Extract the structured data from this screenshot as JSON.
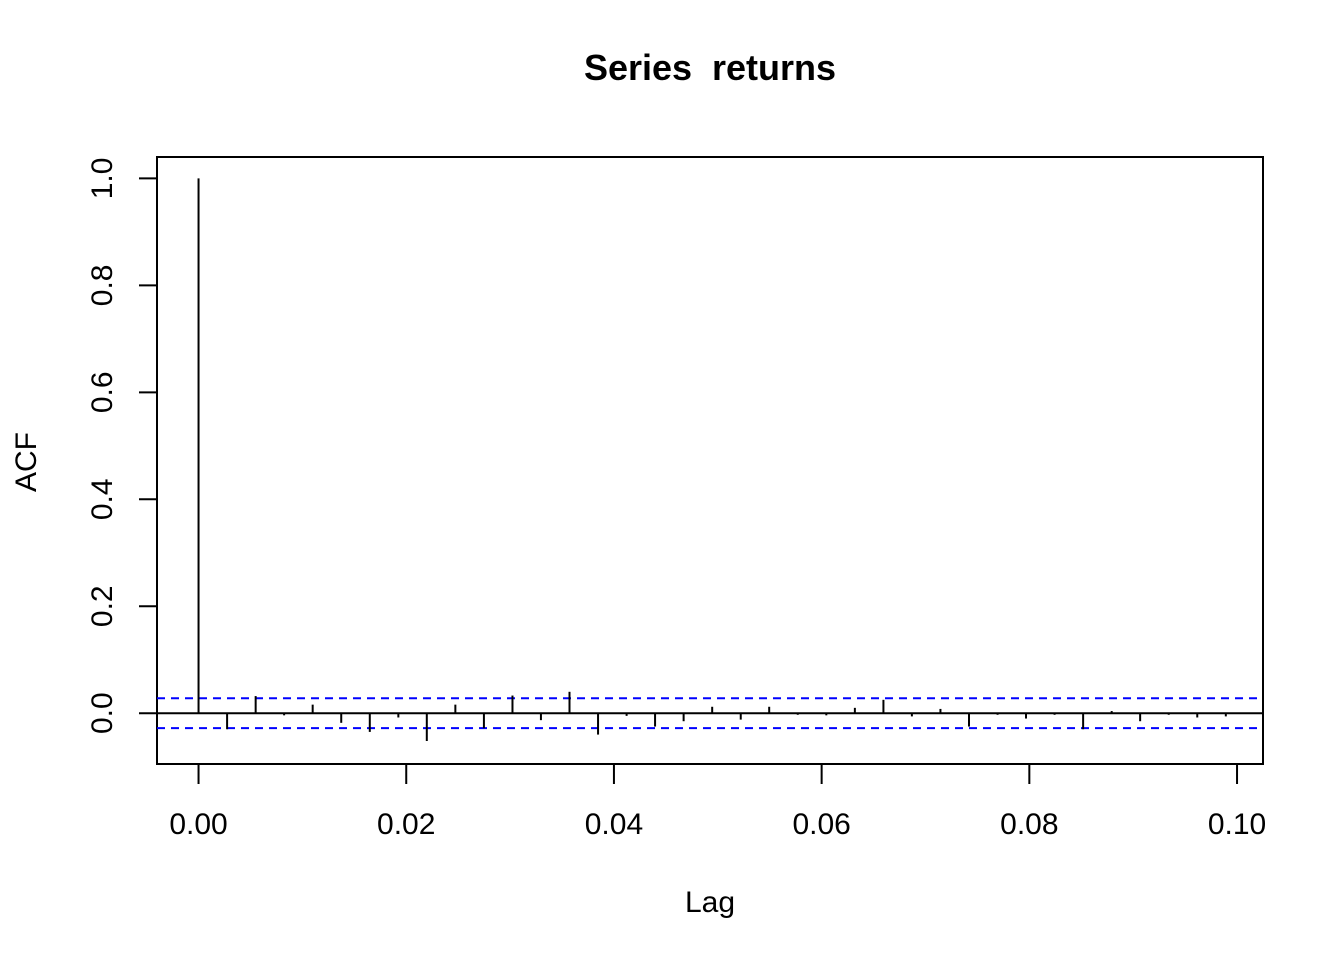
{
  "chart_data": {
    "type": "bar",
    "title": "Series  returns",
    "xlabel": "Lag",
    "ylabel": "ACF",
    "xlim": [
      -0.004,
      0.1025
    ],
    "ylim": [
      -0.095,
      1.04
    ],
    "xticks": [
      0.0,
      0.02,
      0.04,
      0.06,
      0.08,
      0.1
    ],
    "xtick_labels": [
      "0.00",
      "0.02",
      "0.04",
      "0.06",
      "0.08",
      "0.10"
    ],
    "yticks": [
      0.0,
      0.2,
      0.4,
      0.6,
      0.8,
      1.0
    ],
    "ytick_labels": [
      "0.0",
      "0.2",
      "0.4",
      "0.6",
      "0.8",
      "1.0"
    ],
    "grid": false,
    "confidence_band": 0.028,
    "band_color": "#0000ff",
    "bar_color": "#000000",
    "lags": [
      0.0,
      0.00275,
      0.0055,
      0.00824,
      0.01099,
      0.01374,
      0.01649,
      0.01924,
      0.02198,
      0.02473,
      0.02748,
      0.03023,
      0.03297,
      0.03572,
      0.03847,
      0.04122,
      0.04396,
      0.04671,
      0.04946,
      0.05221,
      0.05495,
      0.0577,
      0.06045,
      0.0632,
      0.06595,
      0.06869,
      0.07144,
      0.07419,
      0.07694,
      0.07968,
      0.08243,
      0.08518,
      0.08793,
      0.09067,
      0.09342,
      0.09617,
      0.09892
    ],
    "acf": [
      1.0,
      -0.03,
      0.032,
      -0.004,
      0.016,
      -0.018,
      -0.035,
      -0.008,
      -0.052,
      0.016,
      -0.028,
      0.033,
      -0.013,
      0.04,
      -0.04,
      -0.005,
      -0.025,
      -0.015,
      0.012,
      -0.012,
      0.012,
      -0.003,
      -0.004,
      0.01,
      0.025,
      -0.006,
      0.008,
      -0.025,
      -0.003,
      -0.01,
      -0.003,
      -0.03,
      0.004,
      -0.015,
      -0.003,
      -0.008,
      -0.006
    ]
  }
}
